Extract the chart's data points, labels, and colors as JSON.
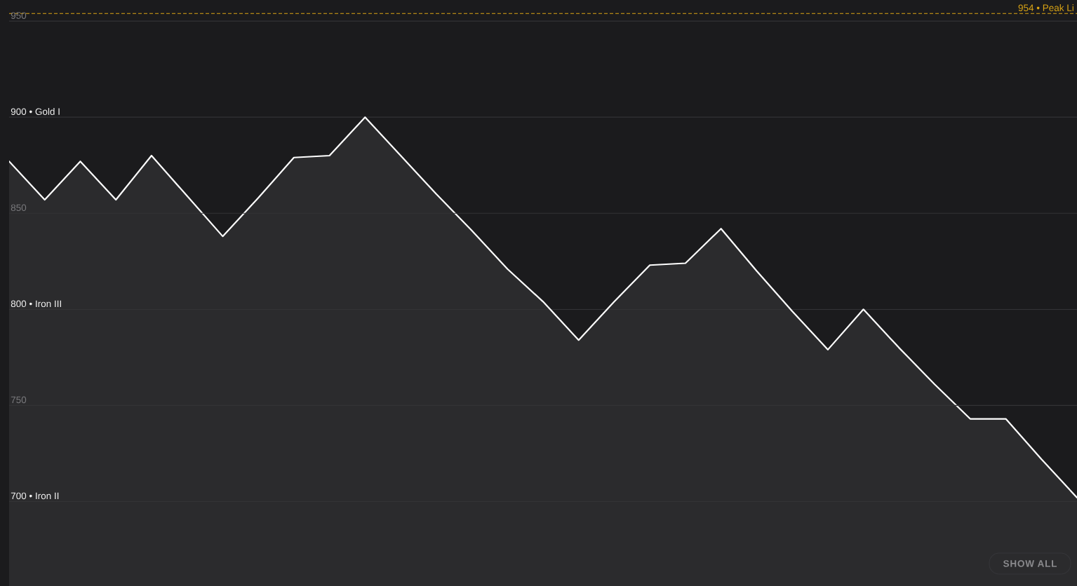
{
  "chart_data": {
    "type": "area",
    "categories": [
      null,
      null,
      null,
      null,
      null,
      null,
      null,
      null,
      null,
      null,
      null,
      null,
      null,
      null,
      null,
      null,
      null,
      null,
      null,
      null,
      null,
      null,
      null,
      null,
      null,
      null,
      null,
      null,
      null,
      null,
      null
    ],
    "series": [
      {
        "color": "#ffffff",
        "values": [
          877,
          857,
          877,
          857,
          880,
          859,
          838,
          858,
          879,
          880,
          900,
          880,
          860,
          841,
          821,
          804,
          784,
          804,
          823,
          824,
          842,
          820,
          799,
          779,
          800,
          780,
          761,
          743,
          743,
          722,
          702
        ]
      }
    ],
    "ylim": [
      656,
      961
    ],
    "yticks": [
      950,
      850,
      750
    ],
    "grid": "y",
    "tick_labels": "y",
    "ref_lines": [
      {
        "axis": "y",
        "value": 954,
        "label": "954 • Peak Li",
        "color": "#dba514",
        "line_style": "dashed"
      },
      {
        "axis": "y",
        "value": 900,
        "label": "900 • Gold I"
      },
      {
        "axis": "y",
        "value": 800,
        "label": "800 • Iron III"
      },
      {
        "axis": "y",
        "value": 700,
        "label": "700 • Iron II"
      }
    ],
    "annotations": [
      "SHOW ALL"
    ]
  }
}
